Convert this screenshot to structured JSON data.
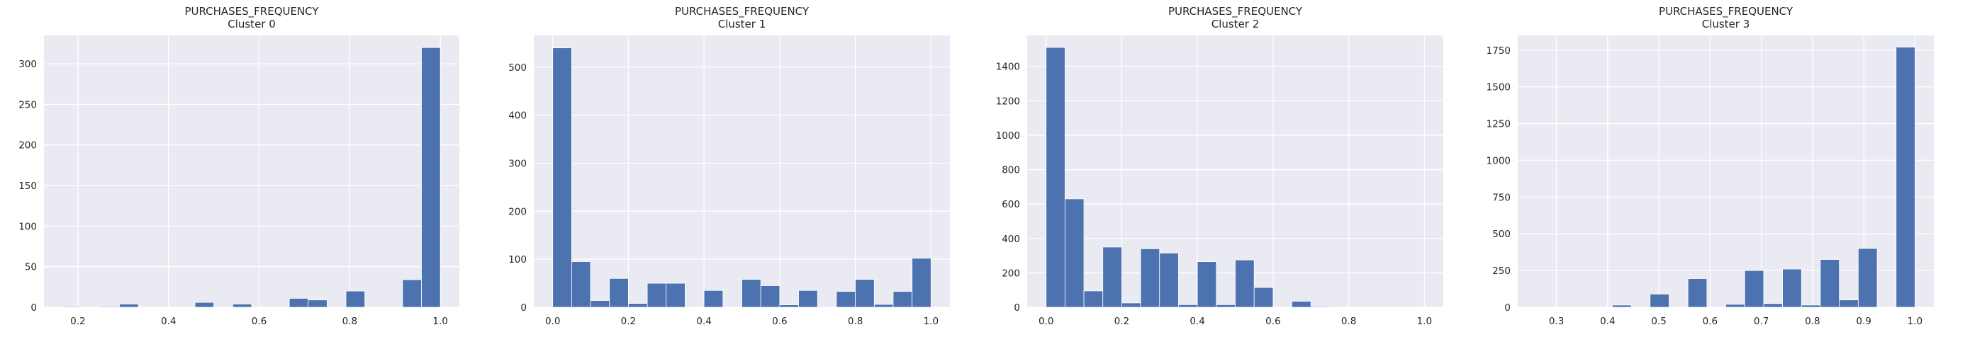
{
  "chart_data": [
    {
      "type": "bar",
      "title": "PURCHASES_FREQUENCY\nCluster 0",
      "xlabel": "",
      "ylabel": "",
      "xlim": [
        0.125,
        1.042
      ],
      "ylim": [
        0,
        335
      ],
      "xticks": [
        0.2,
        0.4,
        0.6,
        0.8,
        1.0
      ],
      "xtick_labels": [
        "0.2",
        "0.4",
        "0.6",
        "0.8",
        "1.0"
      ],
      "yticks": [
        0,
        50,
        100,
        150,
        200,
        250,
        300
      ],
      "ytick_labels": [
        "0",
        "50",
        "100",
        "150",
        "200",
        "250",
        "300"
      ],
      "bins": {
        "start": 0.1667,
        "end": 1.0,
        "count": 20
      },
      "values": [
        1,
        0,
        1,
        4,
        0,
        0,
        0,
        6,
        0,
        4,
        0,
        0,
        11,
        9,
        0,
        20,
        0,
        0,
        34,
        320
      ],
      "grid": true
    },
    {
      "type": "bar",
      "title": "PURCHASES_FREQUENCY\nCluster 1",
      "xlabel": "",
      "ylabel": "",
      "xlim": [
        -0.05,
        1.05
      ],
      "ylim": [
        0,
        566
      ],
      "xticks": [
        0.0,
        0.2,
        0.4,
        0.6,
        0.8,
        1.0
      ],
      "xtick_labels": [
        "0.0",
        "0.2",
        "0.4",
        "0.6",
        "0.8",
        "1.0"
      ],
      "yticks": [
        0,
        100,
        200,
        300,
        400,
        500
      ],
      "ytick_labels": [
        "0",
        "100",
        "200",
        "300",
        "400",
        "500"
      ],
      "bins": {
        "start": 0.0,
        "end": 1.0,
        "count": 20
      },
      "values": [
        540,
        95,
        14,
        60,
        8,
        50,
        50,
        0,
        35,
        0,
        58,
        45,
        5,
        35,
        0,
        33,
        58,
        6,
        33,
        102
      ],
      "grid": true
    },
    {
      "type": "bar",
      "title": "PURCHASES_FREQUENCY\nCluster 2",
      "xlabel": "",
      "ylabel": "",
      "xlim": [
        -0.05,
        1.05
      ],
      "ylim": [
        0,
        1580
      ],
      "xticks": [
        0.0,
        0.2,
        0.4,
        0.6,
        0.8,
        1.0
      ],
      "xtick_labels": [
        "0.0",
        "0.2",
        "0.4",
        "0.6",
        "0.8",
        "1.0"
      ],
      "yticks": [
        0,
        200,
        400,
        600,
        800,
        1000,
        1200,
        1400
      ],
      "ytick_labels": [
        "0",
        "200",
        "400",
        "600",
        "800",
        "1000",
        "1200",
        "1400"
      ],
      "bins": {
        "start": 0.0,
        "end": 1.0,
        "count": 20
      },
      "values": [
        1510,
        630,
        95,
        350,
        25,
        340,
        315,
        15,
        265,
        15,
        275,
        115,
        0,
        35,
        5,
        0,
        0,
        0,
        0,
        0
      ],
      "grid": true
    },
    {
      "type": "bar",
      "title": "PURCHASES_FREQUENCY\nCluster 3",
      "xlabel": "",
      "ylabel": "",
      "xlim": [
        0.2245,
        1.0368
      ],
      "ylim": [
        0,
        1850
      ],
      "xticks": [
        0.3,
        0.4,
        0.5,
        0.6,
        0.7,
        0.8,
        0.9,
        1.0
      ],
      "xtick_labels": [
        "0.3",
        "0.4",
        "0.5",
        "0.6",
        "0.7",
        "0.8",
        "0.9",
        "1.0"
      ],
      "yticks": [
        0,
        250,
        500,
        750,
        1000,
        1250,
        1500,
        1750
      ],
      "ytick_labels": [
        "0",
        "250",
        "500",
        "750",
        "1000",
        "1250",
        "1500",
        "1750"
      ],
      "bins": {
        "start": 0.2614,
        "end": 1.0,
        "count": 20
      },
      "values": [
        0,
        0,
        0,
        0,
        15,
        0,
        90,
        0,
        195,
        0,
        20,
        250,
        25,
        260,
        15,
        325,
        50,
        400,
        0,
        1770
      ],
      "grid": true
    }
  ]
}
